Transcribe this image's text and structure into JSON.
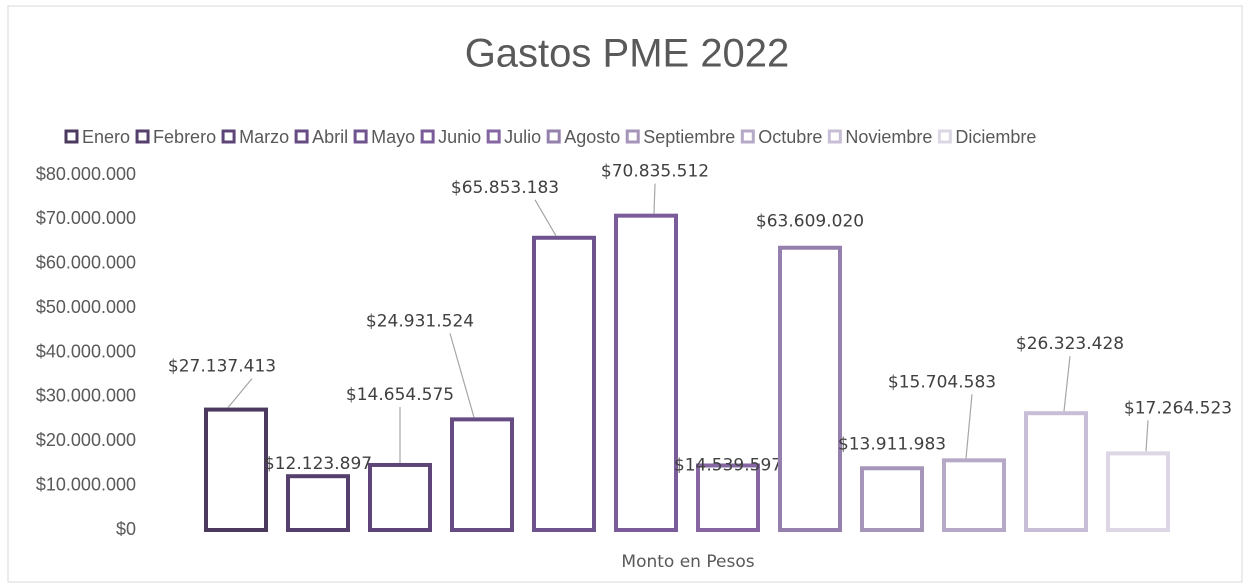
{
  "chart_data": {
    "type": "bar",
    "title": "Gastos PME 2022",
    "categories": [
      "Monto en Pesos"
    ],
    "legend": "top",
    "ylim": [
      0,
      80000000
    ],
    "yticks": [
      {
        "value": 0,
        "label": "$0"
      },
      {
        "value": 10000000,
        "label": "$10.000.000"
      },
      {
        "value": 20000000,
        "label": "$20.000.000"
      },
      {
        "value": 30000000,
        "label": "$30.000.000"
      },
      {
        "value": 40000000,
        "label": "$40.000.000"
      },
      {
        "value": 50000000,
        "label": "$50.000.000"
      },
      {
        "value": 60000000,
        "label": "$60.000.000"
      },
      {
        "value": 70000000,
        "label": "$70.000.000"
      },
      {
        "value": 80000000,
        "label": "$80.000.000"
      }
    ],
    "series": [
      {
        "name": "Enero",
        "color": "#4b3a5e",
        "values": [
          27137413
        ],
        "value_labels": [
          "$27.137.413"
        ]
      },
      {
        "name": "Febrero",
        "color": "#553f6c",
        "values": [
          12123897
        ],
        "value_labels": [
          "$12.123.897"
        ]
      },
      {
        "name": "Marzo",
        "color": "#5e4578",
        "values": [
          14654575
        ],
        "value_labels": [
          "$14.654.575"
        ]
      },
      {
        "name": "Abril",
        "color": "#674c84",
        "values": [
          24931524
        ],
        "value_labels": [
          "$24.931.524"
        ]
      },
      {
        "name": "Mayo",
        "color": "#6f538f",
        "values": [
          65853183
        ],
        "value_labels": [
          "$65.853.183"
        ]
      },
      {
        "name": "Junio",
        "color": "#7a5c9a",
        "values": [
          70835512
        ],
        "value_labels": [
          "$70.835.512"
        ]
      },
      {
        "name": "Julio",
        "color": "#8566a3",
        "values": [
          14539597
        ],
        "value_labels": [
          "$14.539.597"
        ]
      },
      {
        "name": "Agosto",
        "color": "#9580ad",
        "values": [
          63609020
        ],
        "value_labels": [
          "$63.609.020"
        ]
      },
      {
        "name": "Septiembre",
        "color": "#a596b9",
        "values": [
          13911983
        ],
        "value_labels": [
          "$13.911.983"
        ]
      },
      {
        "name": "Octubre",
        "color": "#b5a9c7",
        "values": [
          15704583
        ],
        "value_labels": [
          "$15.704.583"
        ]
      },
      {
        "name": "Noviembre",
        "color": "#c8bed6",
        "values": [
          26323428
        ],
        "value_labels": [
          "$26.323.428"
        ]
      },
      {
        "name": "Diciembre",
        "color": "#dcd6e5",
        "values": [
          17264523
        ],
        "value_labels": [
          "$17.264.523"
        ]
      }
    ]
  }
}
